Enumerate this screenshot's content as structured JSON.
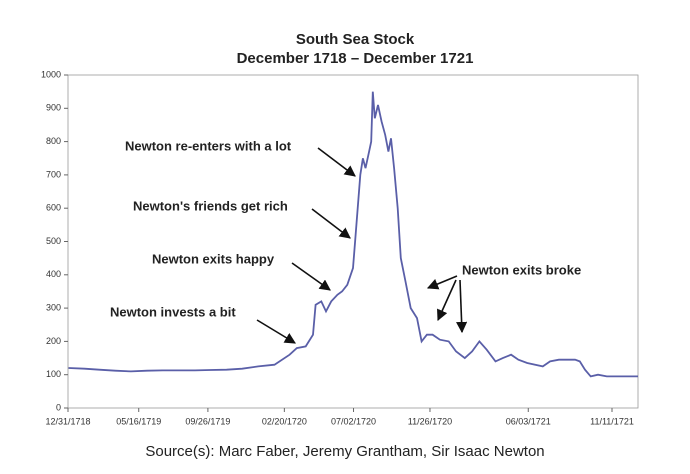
{
  "chart_data": {
    "type": "line",
    "title": "South Sea Stock",
    "subtitle": "December 1718 – December 1721",
    "source": "Source(s): Marc Faber, Jeremy Grantham, Sir Isaac Newton",
    "annotations": [
      "Newton re-enters with a lot",
      "Newton's friends get rich",
      "Newton exits happy",
      "Newton invests a bit",
      "Newton exits broke"
    ],
    "xlim": [
      "1718-12-31",
      "1721-12-31"
    ],
    "xticks": [
      {
        "value": "1718-12-31",
        "label": "12/31/1718"
      },
      {
        "value": "1719-05-16",
        "label": "05/16/1719"
      },
      {
        "value": "1719-09-26",
        "label": "09/26/1719"
      },
      {
        "value": "1720-02-20",
        "label": "02/20/1720"
      },
      {
        "value": "1720-07-02",
        "label": "07/02/1720"
      },
      {
        "value": "1720-11-26",
        "label": "11/26/1720"
      },
      {
        "value": "1721-06-03",
        "label": "06/03/1721"
      },
      {
        "value": "1721-11-11",
        "label": "11/11/1721"
      }
    ],
    "ylim": [
      0,
      1000
    ],
    "yticks": [
      0,
      100,
      200,
      300,
      400,
      500,
      600,
      700,
      800,
      900,
      1000
    ],
    "series": [
      {
        "name": "South Sea Stock",
        "color": "#5a5fa8",
        "x": [
          "1719-01-01",
          "1719-02-01",
          "1719-03-01",
          "1719-04-01",
          "1719-05-01",
          "1719-06-01",
          "1719-07-01",
          "1719-08-01",
          "1719-09-01",
          "1719-10-01",
          "1719-11-01",
          "1719-12-01",
          "1720-01-01",
          "1720-02-01",
          "1720-03-01",
          "1720-03-15",
          "1720-04-01",
          "1720-04-15",
          "1720-04-20",
          "1720-05-01",
          "1720-05-10",
          "1720-05-20",
          "1720-06-01",
          "1720-06-10",
          "1720-06-20",
          "1720-07-01",
          "1720-07-05",
          "1720-07-15",
          "1720-07-20",
          "1720-07-25",
          "1720-08-01",
          "1720-08-05",
          "1720-08-08",
          "1720-08-12",
          "1720-08-18",
          "1720-08-25",
          "1720-09-01",
          "1720-09-07",
          "1720-09-12",
          "1720-09-18",
          "1720-09-25",
          "1720-10-01",
          "1720-10-10",
          "1720-10-20",
          "1720-11-01",
          "1720-11-10",
          "1720-11-20",
          "1720-12-01",
          "1720-12-15",
          "1721-01-01",
          "1721-01-15",
          "1721-02-01",
          "1721-02-15",
          "1721-03-01",
          "1721-03-15",
          "1721-04-01",
          "1721-04-15",
          "1721-05-01",
          "1721-05-15",
          "1721-06-01",
          "1721-07-01",
          "1721-07-15",
          "1721-08-01",
          "1721-09-01",
          "1721-09-10",
          "1721-09-20",
          "1721-10-01",
          "1721-10-15",
          "1721-11-01",
          "1721-12-01",
          "1721-12-31"
        ],
        "values": [
          120,
          118,
          115,
          112,
          110,
          112,
          113,
          113,
          113,
          114,
          115,
          118,
          125,
          130,
          160,
          180,
          185,
          220,
          310,
          320,
          290,
          320,
          340,
          350,
          370,
          420,
          500,
          700,
          750,
          720,
          770,
          800,
          950,
          870,
          910,
          860,
          820,
          770,
          810,
          720,
          600,
          450,
          380,
          300,
          270,
          200,
          220,
          220,
          205,
          200,
          170,
          150,
          170,
          200,
          175,
          140,
          150,
          160,
          145,
          135,
          125,
          140,
          145,
          145,
          140,
          115,
          95,
          100,
          95,
          95,
          95
        ]
      }
    ]
  }
}
